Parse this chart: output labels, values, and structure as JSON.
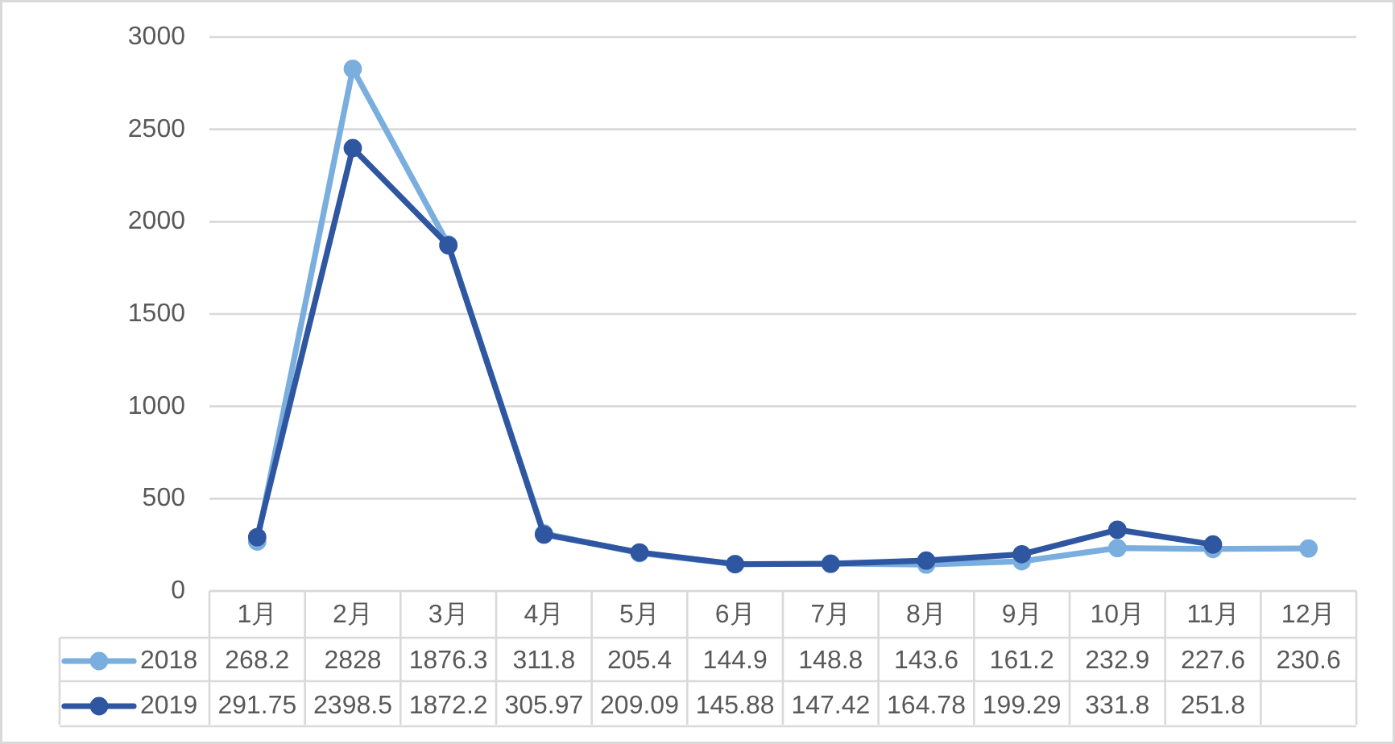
{
  "chart_data": {
    "type": "line",
    "categories": [
      "1月",
      "2月",
      "3月",
      "4月",
      "5月",
      "6月",
      "7月",
      "8月",
      "9月",
      "10月",
      "11月",
      "12月"
    ],
    "series": [
      {
        "name": "2018",
        "color": "#7aaede",
        "values": [
          268.2,
          2828,
          1876.3,
          311.8,
          205.4,
          144.9,
          148.8,
          143.6,
          161.2,
          232.9,
          227.6,
          230.6
        ]
      },
      {
        "name": "2019",
        "color": "#2f56a0",
        "values": [
          291.75,
          2398.5,
          1872.2,
          305.97,
          209.09,
          145.88,
          147.42,
          164.78,
          199.29,
          331.8,
          251.8,
          null
        ]
      }
    ],
    "ylim": [
      0,
      3000
    ],
    "yticks": [
      0,
      500,
      1000,
      1500,
      2000,
      2500,
      3000
    ],
    "grid": "y",
    "marker": "circle",
    "line_style": "solid",
    "data_labels": true,
    "legend": "bottom left"
  }
}
